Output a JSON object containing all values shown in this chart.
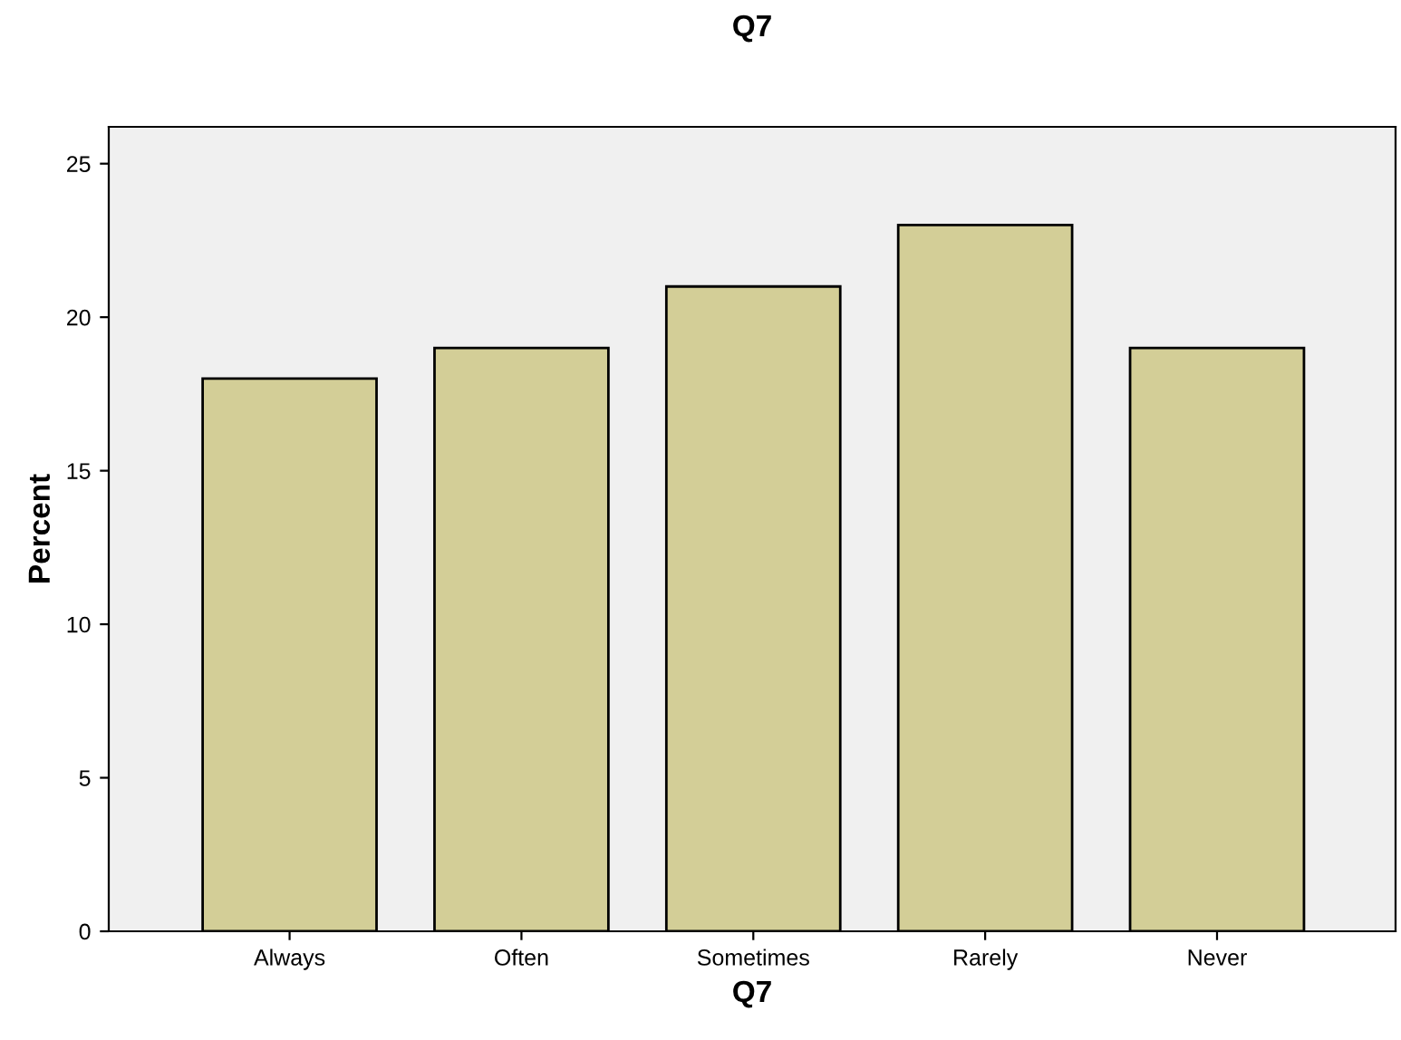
{
  "chart_data": {
    "type": "bar",
    "title": "Q7",
    "xlabel": "Q7",
    "ylabel": "Percent",
    "categories": [
      "Always",
      "Often",
      "Sometimes",
      "Rarely",
      "Never"
    ],
    "values": [
      18,
      19,
      21,
      23,
      19
    ],
    "color": "#d3ce97",
    "ylim": [
      0,
      26.2
    ],
    "yticks": [
      0,
      5,
      10,
      15,
      20,
      25
    ],
    "grid": false
  }
}
